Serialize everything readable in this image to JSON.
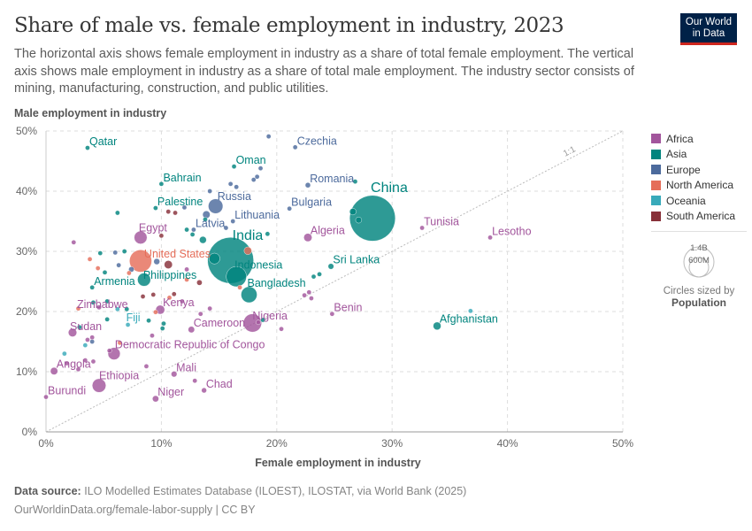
{
  "header": {
    "title": "Share of male vs. female employment in industry, 2023",
    "subtitle": "The horizontal axis shows female employment in industry as a share of total female employment. The vertical axis shows male employment in industry as a share of total male employment. The industry sector consists of mining, manufacturing, construction, and public utilities.",
    "logo_line1": "Our World",
    "logo_line2": "in Data"
  },
  "legend": {
    "items": [
      {
        "label": "Africa",
        "color": "#a2559c"
      },
      {
        "label": "Asia",
        "color": "#00847e"
      },
      {
        "label": "Europe",
        "color": "#4c6a9c"
      },
      {
        "label": "North America",
        "color": "#e56e5a"
      },
      {
        "label": "Oceania",
        "color": "#38aaba"
      },
      {
        "label": "South America",
        "color": "#883039"
      }
    ],
    "size_legend": {
      "big": "1.4B",
      "small": "600M",
      "title": "Circles sized by",
      "variable": "Population"
    }
  },
  "footer": {
    "source_label": "Data source:",
    "source_text": "ILO Modelled Estimates Database (ILOEST), ILOSTAT, via World Bank (2025)",
    "url_text": "OurWorldinData.org/female-labor-supply | CC BY"
  },
  "chart_data": {
    "type": "scatter",
    "title": "Share of male vs. female employment in industry, 2023",
    "xlabel": "Female employment in industry",
    "ylabel": "Male employment in industry",
    "xlim": [
      0,
      50
    ],
    "ylim": [
      0,
      50
    ],
    "xticks": [
      "0%",
      "10%",
      "20%",
      "30%",
      "40%",
      "50%"
    ],
    "yticks": [
      "0%",
      "10%",
      "20%",
      "30%",
      "40%",
      "50%"
    ],
    "grid": true,
    "reference_line": {
      "label": "1:1",
      "slope": 1
    },
    "legend_position": "right",
    "size_variable": "Population",
    "points": [
      {
        "name": "Qatar",
        "region": "Asia",
        "x": 3.6,
        "y": 47.2,
        "pop": 3,
        "label": true
      },
      {
        "name": "Czechia",
        "region": "Europe",
        "x": 21.6,
        "y": 47.3,
        "pop": 11,
        "label": true
      },
      {
        "name": "Oman",
        "region": "Asia",
        "x": 16.3,
        "y": 44.1,
        "pop": 5,
        "label": true
      },
      {
        "name": "Bahrain",
        "region": "Asia",
        "x": 10.0,
        "y": 41.2,
        "pop": 1.5,
        "label": true
      },
      {
        "name": "Romania",
        "region": "Europe",
        "x": 22.7,
        "y": 41.0,
        "pop": 19,
        "label": true
      },
      {
        "name": "Russia",
        "region": "Europe",
        "x": 14.7,
        "y": 37.5,
        "pop": 144,
        "label": true
      },
      {
        "name": "Palestine",
        "region": "Asia",
        "x": 9.5,
        "y": 37.2,
        "pop": 5,
        "label": true
      },
      {
        "name": "Bulgaria",
        "region": "Europe",
        "x": 21.1,
        "y": 37.1,
        "pop": 6.5,
        "label": true
      },
      {
        "name": "China",
        "region": "Asia",
        "x": 28.3,
        "y": 35.5,
        "pop": 1410,
        "label": true
      },
      {
        "name": "Lithuania",
        "region": "Europe",
        "x": 16.2,
        "y": 35.0,
        "pop": 2.8,
        "label": true
      },
      {
        "name": "Tunisia",
        "region": "Africa",
        "x": 32.6,
        "y": 33.9,
        "pop": 12,
        "label": true
      },
      {
        "name": "Latvia",
        "region": "Europe",
        "x": 12.8,
        "y": 33.6,
        "pop": 1.9,
        "label": true
      },
      {
        "name": "Egypt",
        "region": "Africa",
        "x": 8.2,
        "y": 32.3,
        "pop": 112,
        "label": true
      },
      {
        "name": "Algeria",
        "region": "Africa",
        "x": 22.7,
        "y": 32.3,
        "pop": 46,
        "label": true
      },
      {
        "name": "Lesotho",
        "region": "Africa",
        "x": 38.5,
        "y": 32.3,
        "pop": 2.3,
        "label": true
      },
      {
        "name": "India",
        "region": "Asia",
        "x": 16.0,
        "y": 28.5,
        "pop": 1430,
        "label": true
      },
      {
        "name": "United States",
        "region": "North America",
        "x": 8.2,
        "y": 28.4,
        "pop": 335,
        "label": true
      },
      {
        "name": "Indonesia",
        "region": "Asia",
        "x": 16.5,
        "y": 25.8,
        "pop": 277,
        "label": true
      },
      {
        "name": "Sri Lanka",
        "region": "Asia",
        "x": 24.7,
        "y": 27.5,
        "pop": 22,
        "label": true
      },
      {
        "name": "Philippines",
        "region": "Asia",
        "x": 8.5,
        "y": 25.3,
        "pop": 117,
        "label": true
      },
      {
        "name": "Armenia",
        "region": "Asia",
        "x": 4.0,
        "y": 24.0,
        "pop": 2.8,
        "label": true
      },
      {
        "name": "Bangladesh",
        "region": "Asia",
        "x": 17.6,
        "y": 22.8,
        "pop": 173,
        "label": true
      },
      {
        "name": "Zimbabwe",
        "region": "Africa",
        "x": 4.6,
        "y": 20.7,
        "pop": 16,
        "label": true
      },
      {
        "name": "Kenya",
        "region": "Africa",
        "x": 9.9,
        "y": 20.3,
        "pop": 55,
        "label": true
      },
      {
        "name": "Benin",
        "region": "Africa",
        "x": 24.8,
        "y": 19.6,
        "pop": 13,
        "label": true
      },
      {
        "name": "Afghanistan",
        "region": "Asia",
        "x": 33.9,
        "y": 17.6,
        "pop": 42,
        "label": true
      },
      {
        "name": "Nigeria",
        "region": "Africa",
        "x": 17.9,
        "y": 18.1,
        "pop": 224,
        "label": true
      },
      {
        "name": "Fiji",
        "region": "Oceania",
        "x": 7.1,
        "y": 17.8,
        "pop": 0.9,
        "label": true
      },
      {
        "name": "Cameroon",
        "region": "Africa",
        "x": 12.6,
        "y": 17.0,
        "pop": 28,
        "label": true
      },
      {
        "name": "Sudan",
        "region": "Africa",
        "x": 2.3,
        "y": 16.5,
        "pop": 48,
        "label": true
      },
      {
        "name": "Democratic Republic of Congo",
        "region": "Africa",
        "x": 5.9,
        "y": 13.0,
        "pop": 102,
        "label": true
      },
      {
        "name": "Angola",
        "region": "Africa",
        "x": 0.7,
        "y": 10.1,
        "pop": 37,
        "label": true
      },
      {
        "name": "Mali",
        "region": "Africa",
        "x": 11.1,
        "y": 9.6,
        "pop": 23,
        "label": true
      },
      {
        "name": "Ethiopia",
        "region": "Africa",
        "x": 4.6,
        "y": 7.7,
        "pop": 127,
        "label": true
      },
      {
        "name": "Chad",
        "region": "Africa",
        "x": 13.7,
        "y": 6.9,
        "pop": 18,
        "label": true
      },
      {
        "name": "Burundi",
        "region": "Africa",
        "x": 0.0,
        "y": 5.8,
        "pop": 13,
        "label": true
      },
      {
        "name": "Niger",
        "region": "Africa",
        "x": 9.5,
        "y": 5.5,
        "pop": 27,
        "label": true
      },
      {
        "name": "",
        "region": "Europe",
        "x": 19.3,
        "y": 49.1,
        "pop": 5
      },
      {
        "name": "",
        "region": "Europe",
        "x": 18.6,
        "y": 43.8,
        "pop": 5
      },
      {
        "name": "",
        "region": "Europe",
        "x": 18.0,
        "y": 41.9,
        "pop": 5
      },
      {
        "name": "",
        "region": "Europe",
        "x": 18.3,
        "y": 42.4,
        "pop": 5
      },
      {
        "name": "",
        "region": "Europe",
        "x": 16.0,
        "y": 41.2,
        "pop": 5
      },
      {
        "name": "",
        "region": "Europe",
        "x": 16.5,
        "y": 40.7,
        "pop": 10
      },
      {
        "name": "",
        "region": "Europe",
        "x": 14.2,
        "y": 40.0,
        "pop": 5
      },
      {
        "name": "",
        "region": "Asia",
        "x": 26.8,
        "y": 41.6,
        "pop": 5
      },
      {
        "name": "",
        "region": "Asia",
        "x": 26.6,
        "y": 36.6,
        "pop": 30
      },
      {
        "name": "",
        "region": "Asia",
        "x": 27.1,
        "y": 35.2,
        "pop": 25
      },
      {
        "name": "",
        "region": "Europe",
        "x": 13.9,
        "y": 36.1,
        "pop": 38
      },
      {
        "name": "",
        "region": "Europe",
        "x": 12.0,
        "y": 37.3,
        "pop": 5
      },
      {
        "name": "",
        "region": "South America",
        "x": 10.6,
        "y": 36.6,
        "pop": 5
      },
      {
        "name": "",
        "region": "South America",
        "x": 11.2,
        "y": 36.4,
        "pop": 5
      },
      {
        "name": "",
        "region": "Asia",
        "x": 6.2,
        "y": 36.4,
        "pop": 5
      },
      {
        "name": "",
        "region": "Asia",
        "x": 13.8,
        "y": 35.3,
        "pop": 5
      },
      {
        "name": "",
        "region": "Europe",
        "x": 15.6,
        "y": 33.9,
        "pop": 5
      },
      {
        "name": "",
        "region": "Asia",
        "x": 19.2,
        "y": 32.9,
        "pop": 8
      },
      {
        "name": "",
        "region": "Asia",
        "x": 13.6,
        "y": 31.9,
        "pop": 33
      },
      {
        "name": "",
        "region": "Asia",
        "x": 12.7,
        "y": 32.8,
        "pop": 10
      },
      {
        "name": "",
        "region": "Asia",
        "x": 12.2,
        "y": 33.6,
        "pop": 5
      },
      {
        "name": "",
        "region": "South America",
        "x": 10.0,
        "y": 32.6,
        "pop": 8
      },
      {
        "name": "",
        "region": "Africa",
        "x": 2.4,
        "y": 31.5,
        "pop": 5
      },
      {
        "name": "",
        "region": "North America",
        "x": 17.5,
        "y": 30.1,
        "pop": 40
      },
      {
        "name": "",
        "region": "Asia",
        "x": 14.6,
        "y": 28.8,
        "pop": 80
      },
      {
        "name": "",
        "region": "Europe",
        "x": 9.6,
        "y": 28.3,
        "pop": 25
      },
      {
        "name": "",
        "region": "South America",
        "x": 10.6,
        "y": 27.8,
        "pop": 45
      },
      {
        "name": "",
        "region": "Europe",
        "x": 7.4,
        "y": 27.0,
        "pop": 20
      },
      {
        "name": "",
        "region": "Asia",
        "x": 6.8,
        "y": 30.0,
        "pop": 5
      },
      {
        "name": "",
        "region": "Asia",
        "x": 4.7,
        "y": 29.7,
        "pop": 5
      },
      {
        "name": "",
        "region": "Europe",
        "x": 6.0,
        "y": 29.8,
        "pop": 5
      },
      {
        "name": "",
        "region": "North America",
        "x": 3.8,
        "y": 28.7,
        "pop": 5
      },
      {
        "name": "",
        "region": "North America",
        "x": 4.5,
        "y": 27.2,
        "pop": 5
      },
      {
        "name": "",
        "region": "Asia",
        "x": 5.1,
        "y": 26.5,
        "pop": 5
      },
      {
        "name": "",
        "region": "Europe",
        "x": 6.3,
        "y": 27.7,
        "pop": 5
      },
      {
        "name": "",
        "region": "North America",
        "x": 7.2,
        "y": 26.4,
        "pop": 5
      },
      {
        "name": "",
        "region": "Africa",
        "x": 12.2,
        "y": 27.0,
        "pop": 12
      },
      {
        "name": "",
        "region": "North America",
        "x": 12.2,
        "y": 25.3,
        "pop": 5
      },
      {
        "name": "",
        "region": "South America",
        "x": 13.3,
        "y": 24.8,
        "pop": 20
      },
      {
        "name": "",
        "region": "North America",
        "x": 16.8,
        "y": 24.0,
        "pop": 5
      },
      {
        "name": "",
        "region": "Asia",
        "x": 23.2,
        "y": 25.8,
        "pop": 5
      },
      {
        "name": "",
        "region": "Africa",
        "x": 22.8,
        "y": 23.2,
        "pop": 5
      },
      {
        "name": "",
        "region": "Africa",
        "x": 22.4,
        "y": 22.7,
        "pop": 5
      },
      {
        "name": "",
        "region": "Africa",
        "x": 23.0,
        "y": 22.2,
        "pop": 5
      },
      {
        "name": "",
        "region": "Africa",
        "x": 11.8,
        "y": 21.7,
        "pop": 5
      },
      {
        "name": "",
        "region": "Africa",
        "x": 14.2,
        "y": 20.5,
        "pop": 8
      },
      {
        "name": "",
        "region": "Africa",
        "x": 13.4,
        "y": 19.6,
        "pop": 5
      },
      {
        "name": "",
        "region": "North America",
        "x": 10.7,
        "y": 22.3,
        "pop": 5
      },
      {
        "name": "",
        "region": "South America",
        "x": 9.3,
        "y": 22.8,
        "pop": 8
      },
      {
        "name": "",
        "region": "South America",
        "x": 8.4,
        "y": 22.5,
        "pop": 5
      },
      {
        "name": "",
        "region": "South America",
        "x": 11.1,
        "y": 22.9,
        "pop": 5
      },
      {
        "name": "",
        "region": "North America",
        "x": 9.5,
        "y": 19.9,
        "pop": 5
      },
      {
        "name": "",
        "region": "Asia",
        "x": 8.9,
        "y": 18.5,
        "pop": 5
      },
      {
        "name": "",
        "region": "Asia",
        "x": 10.2,
        "y": 18.0,
        "pop": 5
      },
      {
        "name": "",
        "region": "Asia",
        "x": 10.1,
        "y": 17.2,
        "pop": 5
      },
      {
        "name": "",
        "region": "Africa",
        "x": 9.2,
        "y": 16.0,
        "pop": 5
      },
      {
        "name": "",
        "region": "Asia",
        "x": 5.3,
        "y": 18.7,
        "pop": 5
      },
      {
        "name": "",
        "region": "Asia",
        "x": 7.0,
        "y": 20.4,
        "pop": 5
      },
      {
        "name": "",
        "region": "Oceania",
        "x": 6.2,
        "y": 20.4,
        "pop": 1
      },
      {
        "name": "",
        "region": "Asia",
        "x": 4.1,
        "y": 21.5,
        "pop": 5
      },
      {
        "name": "",
        "region": "Asia",
        "x": 5.3,
        "y": 21.7,
        "pop": 5
      },
      {
        "name": "",
        "region": "North America",
        "x": 2.8,
        "y": 20.5,
        "pop": 5
      },
      {
        "name": "",
        "region": "Asia",
        "x": 2.9,
        "y": 17.4,
        "pop": 5
      },
      {
        "name": "",
        "region": "Oceania",
        "x": 3.4,
        "y": 14.4,
        "pop": 1
      },
      {
        "name": "",
        "region": "Africa",
        "x": 3.6,
        "y": 15.3,
        "pop": 12
      },
      {
        "name": "",
        "region": "Europe",
        "x": 4.0,
        "y": 15.0,
        "pop": 5
      },
      {
        "name": "",
        "region": "Africa",
        "x": 4.0,
        "y": 15.7,
        "pop": 5
      },
      {
        "name": "",
        "region": "Oceania",
        "x": 1.6,
        "y": 13.0,
        "pop": 1
      },
      {
        "name": "",
        "region": "North America",
        "x": 6.4,
        "y": 14.8,
        "pop": 5
      },
      {
        "name": "",
        "region": "Africa",
        "x": 5.5,
        "y": 13.5,
        "pop": 12
      },
      {
        "name": "",
        "region": "Africa",
        "x": 4.1,
        "y": 11.7,
        "pop": 5
      },
      {
        "name": "",
        "region": "Africa",
        "x": 3.4,
        "y": 11.9,
        "pop": 5
      },
      {
        "name": "",
        "region": "Africa",
        "x": 1.8,
        "y": 11.4,
        "pop": 5
      },
      {
        "name": "",
        "region": "Africa",
        "x": 2.8,
        "y": 10.4,
        "pop": 5
      },
      {
        "name": "",
        "region": "Africa",
        "x": 8.7,
        "y": 10.9,
        "pop": 8
      },
      {
        "name": "",
        "region": "Africa",
        "x": 12.9,
        "y": 8.5,
        "pop": 5
      },
      {
        "name": "",
        "region": "Africa",
        "x": 20.4,
        "y": 17.1,
        "pop": 5
      },
      {
        "name": "",
        "region": "Africa",
        "x": 18.4,
        "y": 18.2,
        "pop": 5
      },
      {
        "name": "",
        "region": "Asia",
        "x": 18.8,
        "y": 18.6,
        "pop": 8
      },
      {
        "name": "",
        "region": "Asia",
        "x": 23.7,
        "y": 26.2,
        "pop": 5
      },
      {
        "name": "",
        "region": "Oceania",
        "x": 36.8,
        "y": 20.1,
        "pop": 1
      }
    ]
  }
}
